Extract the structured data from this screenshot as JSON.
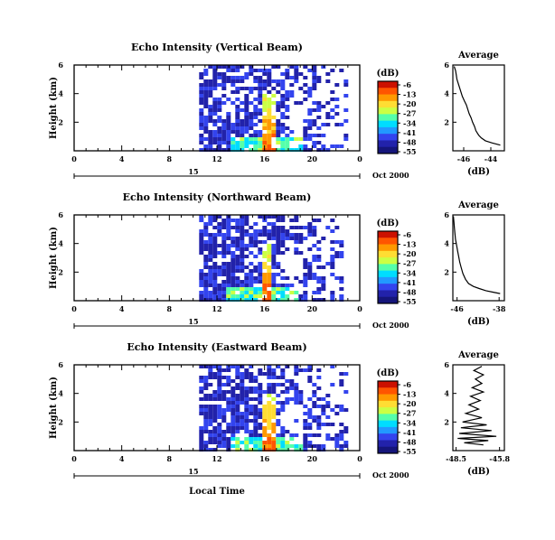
{
  "figure": {
    "x_axis_label": "Local Time"
  },
  "colorbar": {
    "unit": "(dB)",
    "ticks": [
      "-6",
      "-13",
      "-20",
      "-27",
      "-34",
      "-41",
      "-48",
      "-55"
    ],
    "colors": [
      "#cc1100",
      "#ff5500",
      "#ff9900",
      "#ffdd33",
      "#ccff44",
      "#55ffaa",
      "#00ddff",
      "#2299ff",
      "#3344ee",
      "#2222aa",
      "#15157a"
    ]
  },
  "chart_data": [
    {
      "type": "heatmap",
      "title": "Echo Intensity (Vertical Beam)",
      "ylabel": "Height (km)",
      "y_ticks": [
        "6",
        "4",
        "2"
      ],
      "x_ticks": [
        "0",
        "4",
        "8",
        "12",
        "16",
        "20",
        "0"
      ],
      "date_labels": [
        "15",
        "Oct 2000"
      ],
      "x_range": [
        0,
        24
      ],
      "y_range": [
        0,
        6
      ],
      "data_start_hour": 10.5,
      "data_end_hour": 22.8,
      "plume_hour": 16.2,
      "colorbar_range": [
        -55,
        -6
      ]
    },
    {
      "type": "heatmap",
      "title": "Echo Intensity (Northward Beam)",
      "ylabel": "Height (km)",
      "y_ticks": [
        "6",
        "4",
        "2"
      ],
      "x_ticks": [
        "0",
        "4",
        "8",
        "12",
        "16",
        "20",
        "0"
      ],
      "date_labels": [
        "15",
        "Oct 2000"
      ],
      "x_range": [
        0,
        24
      ],
      "y_range": [
        0,
        6
      ],
      "data_start_hour": 10.5,
      "data_end_hour": 22.3,
      "plume_hour": 16.0,
      "colorbar_range": [
        -55,
        -6
      ]
    },
    {
      "type": "heatmap",
      "title": "Echo Intensity (Eastward Beam)",
      "ylabel": "Height (km)",
      "y_ticks": [
        "6",
        "4",
        "2"
      ],
      "x_ticks": [
        "0",
        "4",
        "8",
        "12",
        "16",
        "20",
        "0"
      ],
      "date_labels": [
        "15",
        "Oct 2000"
      ],
      "x_range": [
        0,
        24
      ],
      "y_range": [
        0,
        6
      ],
      "data_start_hour": 10.5,
      "data_end_hour": 22.8,
      "plume_hour": 16.2,
      "colorbar_range": [
        -55,
        -6
      ]
    },
    {
      "type": "line",
      "title": "Average",
      "xlabel": "(dB)",
      "y_ticks": [
        "6",
        "4",
        "2"
      ],
      "x_ticks": [
        "-46",
        "-44"
      ],
      "x_range": [
        -46.8,
        -43.0
      ],
      "y_range": [
        0,
        6
      ],
      "profile": [
        [
          -46.7,
          5.9
        ],
        [
          -46.6,
          5.6
        ],
        [
          -46.55,
          5.3
        ],
        [
          -46.5,
          5.0
        ],
        [
          -46.4,
          4.7
        ],
        [
          -46.3,
          4.4
        ],
        [
          -46.2,
          4.1
        ],
        [
          -46.1,
          3.8
        ],
        [
          -45.95,
          3.5
        ],
        [
          -45.8,
          3.2
        ],
        [
          -45.7,
          2.9
        ],
        [
          -45.6,
          2.6
        ],
        [
          -45.45,
          2.3
        ],
        [
          -45.35,
          2.0
        ],
        [
          -45.2,
          1.7
        ],
        [
          -45.1,
          1.4
        ],
        [
          -44.9,
          1.1
        ],
        [
          -44.7,
          0.9
        ],
        [
          -44.4,
          0.7
        ],
        [
          -43.9,
          0.55
        ],
        [
          -43.3,
          0.4
        ]
      ]
    },
    {
      "type": "line",
      "title": "Average",
      "xlabel": "(dB)",
      "y_ticks": [
        "6",
        "4",
        "2"
      ],
      "x_ticks": [
        "-46",
        "-38"
      ],
      "x_range": [
        -46.8,
        -37.0
      ],
      "y_range": [
        0,
        6
      ],
      "profile": [
        [
          -46.7,
          5.9
        ],
        [
          -46.6,
          5.5
        ],
        [
          -46.5,
          5.1
        ],
        [
          -46.4,
          4.7
        ],
        [
          -46.3,
          4.3
        ],
        [
          -46.1,
          3.9
        ],
        [
          -45.9,
          3.5
        ],
        [
          -45.7,
          3.1
        ],
        [
          -45.5,
          2.7
        ],
        [
          -45.2,
          2.3
        ],
        [
          -44.9,
          1.9
        ],
        [
          -44.4,
          1.5
        ],
        [
          -43.8,
          1.2
        ],
        [
          -42.9,
          1.0
        ],
        [
          -41.8,
          0.85
        ],
        [
          -40.5,
          0.7
        ],
        [
          -39.2,
          0.6
        ],
        [
          -37.8,
          0.5
        ]
      ]
    },
    {
      "type": "line",
      "title": "Average",
      "xlabel": "(dB)",
      "y_ticks": [
        "6",
        "4",
        "2"
      ],
      "x_ticks": [
        "-48.5",
        "-45.8"
      ],
      "x_range": [
        -48.7,
        -45.5
      ],
      "y_range": [
        0,
        6
      ],
      "profile": [
        [
          -46.9,
          5.9
        ],
        [
          -47.4,
          5.6
        ],
        [
          -46.8,
          5.3
        ],
        [
          -47.3,
          5.0
        ],
        [
          -46.9,
          4.7
        ],
        [
          -47.5,
          4.4
        ],
        [
          -46.8,
          4.1
        ],
        [
          -47.6,
          3.8
        ],
        [
          -47.0,
          3.5
        ],
        [
          -47.7,
          3.2
        ],
        [
          -47.1,
          2.9
        ],
        [
          -47.9,
          2.6
        ],
        [
          -46.9,
          2.3
        ],
        [
          -48.1,
          2.0
        ],
        [
          -46.6,
          1.8
        ],
        [
          -48.2,
          1.6
        ],
        [
          -46.3,
          1.4
        ],
        [
          -48.3,
          1.2
        ],
        [
          -46.0,
          1.0
        ],
        [
          -48.4,
          0.85
        ],
        [
          -46.5,
          0.7
        ],
        [
          -48.0,
          0.55
        ],
        [
          -46.8,
          0.4
        ]
      ]
    }
  ]
}
